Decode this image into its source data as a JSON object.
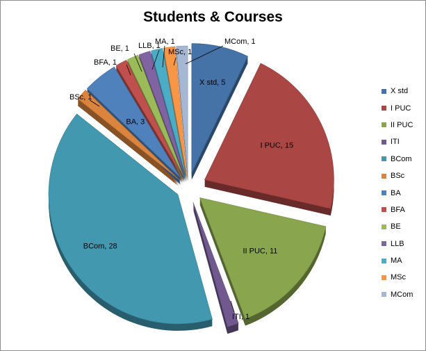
{
  "chart_data": {
    "type": "pie",
    "title": "Students & Courses",
    "style": "3d-exploded",
    "legend_position": "right",
    "categories": [
      "X std",
      "I PUC",
      "II PUC",
      "ITI",
      "BCom",
      "BSc",
      "BA",
      "BFA",
      "BE",
      "LLB",
      "MA",
      "MSc",
      "MCom"
    ],
    "values": [
      5,
      15,
      11,
      1,
      28,
      1,
      3,
      1,
      1,
      1,
      1,
      1,
      1
    ],
    "data_labels": [
      "X std, 5",
      "I PUC, 15",
      "II PUC, 11",
      "ITI, 1",
      "BCom, 28",
      "BSc, 1",
      "BA, 3",
      "BFA, 1",
      "BE, 1",
      "LLB, 1",
      "MA, 1",
      "MSc, 1",
      "MCom, 1"
    ],
    "colors": [
      "#4572a7",
      "#aa4643",
      "#89a54e",
      "#71588f",
      "#4198af",
      "#db843d",
      "#4f81bd",
      "#c0504d",
      "#9bbb59",
      "#8064a2",
      "#4bacc6",
      "#f79646",
      "#a6b7d4"
    ]
  }
}
